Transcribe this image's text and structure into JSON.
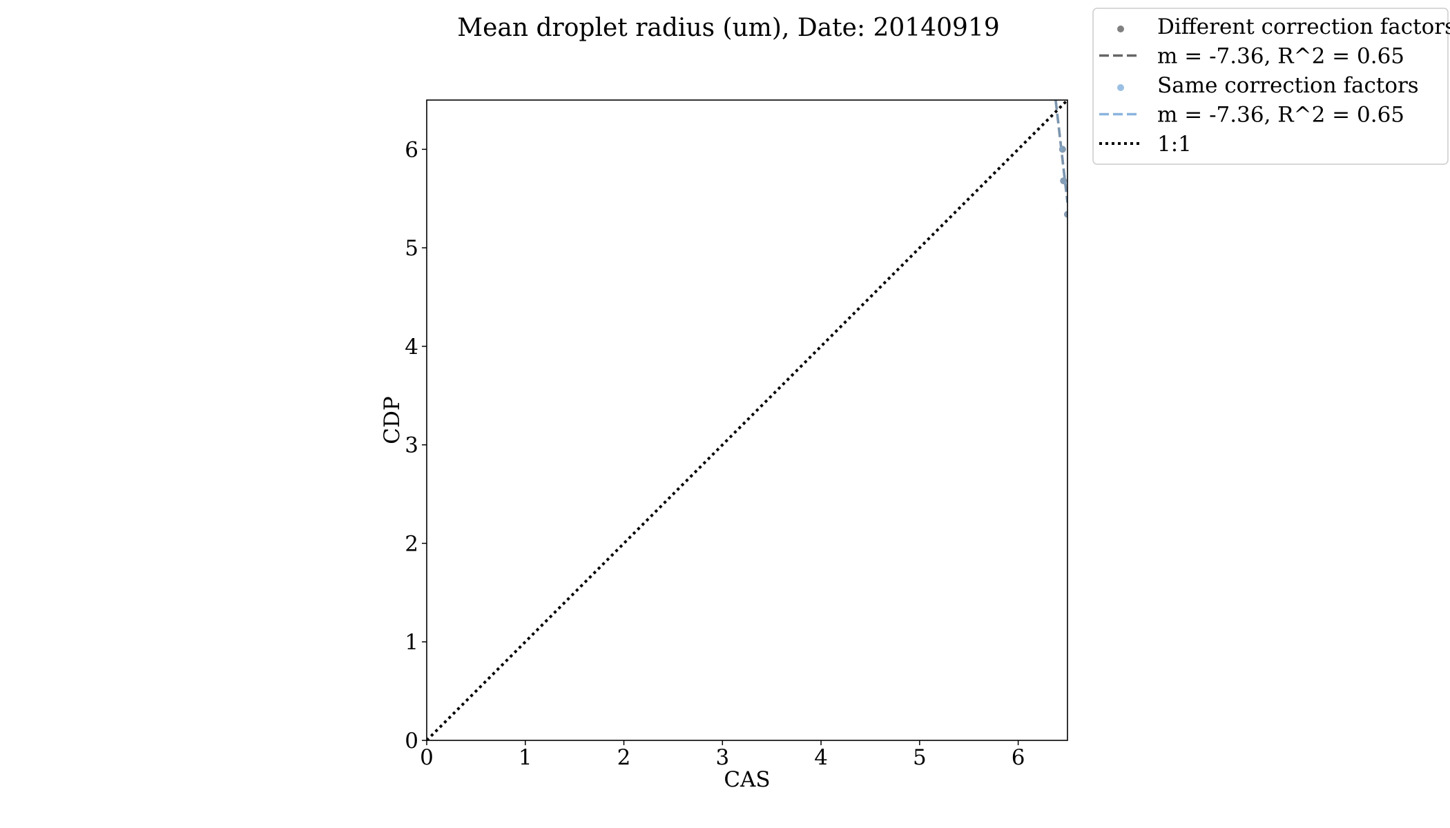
{
  "chart_data": {
    "type": "scatter",
    "title": "Mean droplet radius (um), Date: 20140919",
    "xlabel": "CAS",
    "ylabel": "CDP",
    "xlim": [
      0,
      6.5
    ],
    "ylim": [
      0,
      6.5
    ],
    "xticks": [
      "0",
      "1",
      "2",
      "3",
      "4",
      "5",
      "6"
    ],
    "yticks": [
      "0",
      "1",
      "2",
      "3",
      "4",
      "5",
      "6"
    ],
    "grid": false,
    "legend_position": "outside upper-right",
    "series": [
      {
        "name": "Different correction factors",
        "kind": "scatter",
        "color": "#808080",
        "x": [
          6.45,
          6.46,
          6.5
        ],
        "y": [
          6.0,
          5.68,
          5.34
        ]
      },
      {
        "name": "m = -7.36, R^2 = 0.65",
        "kind": "fit-line",
        "style": "dashed",
        "color": "#666666",
        "x": [
          6.38,
          6.5
        ],
        "y": [
          6.5,
          5.46
        ]
      },
      {
        "name": "Same correction factors",
        "kind": "scatter",
        "color": "#89b4de",
        "x": [
          6.45,
          6.46,
          6.5
        ],
        "y": [
          6.0,
          5.68,
          5.34
        ]
      },
      {
        "name": "m = -7.36, R^2 = 0.65",
        "kind": "fit-line",
        "style": "dashed",
        "color": "#89b4de",
        "x": [
          6.38,
          6.5
        ],
        "y": [
          6.5,
          5.46
        ]
      },
      {
        "name": "1:1",
        "kind": "reference-line",
        "style": "dotted",
        "color": "#000000",
        "x": [
          0,
          6.5
        ],
        "y": [
          0,
          6.5
        ]
      }
    ]
  }
}
